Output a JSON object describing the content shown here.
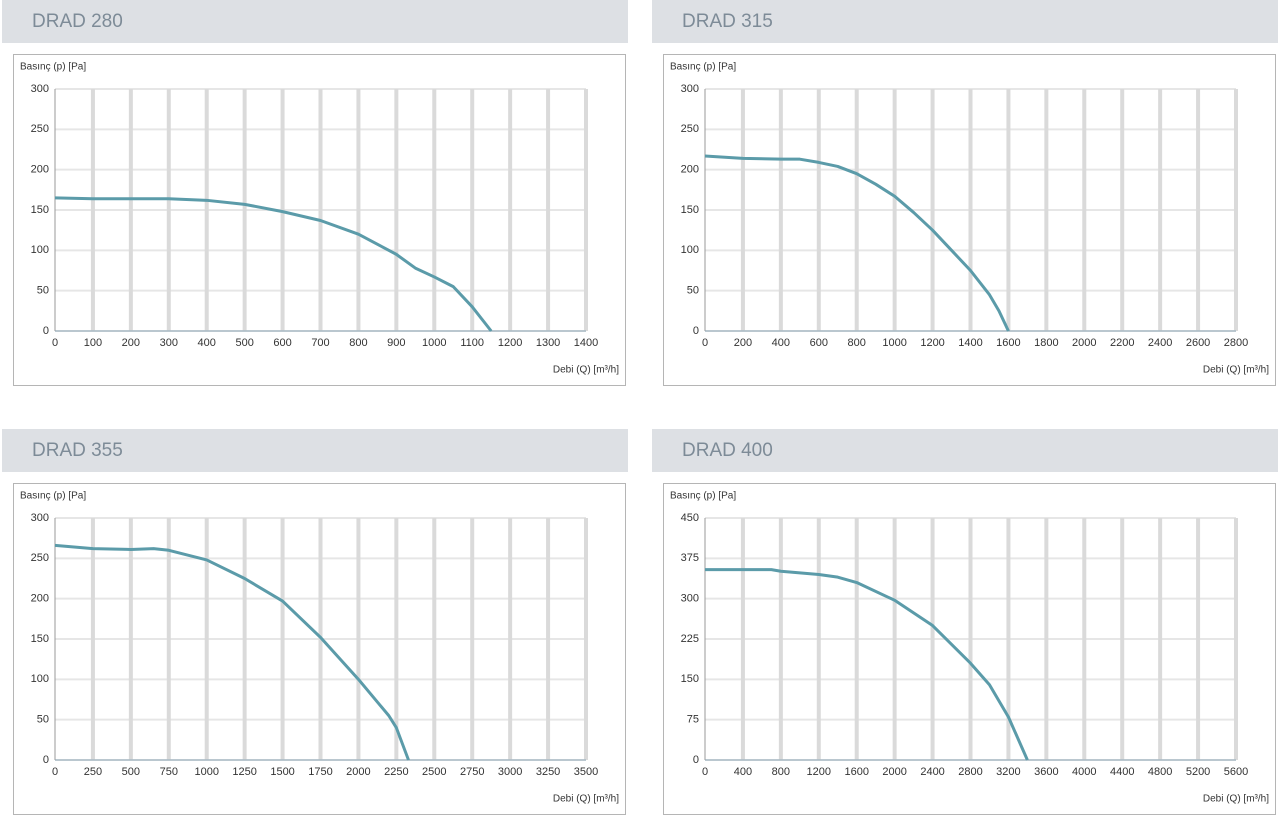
{
  "chart_data": [
    {
      "type": "line",
      "title": "DRAD 280",
      "y_label": "Basınç (p) [Pa]",
      "x_label": "Debi (Q) [m³/h]",
      "color": "#5b9ba9",
      "grid": true,
      "x": [
        0,
        100,
        200,
        300,
        400,
        500,
        600,
        700,
        800,
        900,
        950,
        1000,
        1050,
        1100,
        1150
      ],
      "values": [
        165,
        164,
        164,
        164,
        162,
        157,
        148,
        137,
        120,
        95,
        78,
        67,
        55,
        30,
        0
      ],
      "xlim": [
        0,
        1400
      ],
      "xticks": [
        0,
        100,
        200,
        300,
        400,
        500,
        600,
        700,
        800,
        900,
        1000,
        1100,
        1200,
        1300,
        1400
      ],
      "ylim": [
        0,
        300
      ],
      "yticks": [
        0,
        50,
        100,
        150,
        200,
        250,
        300
      ]
    },
    {
      "type": "line",
      "title": "DRAD 315",
      "y_label": "Basınç (p) [Pa]",
      "x_label": "Debi (Q) [m³/h]",
      "color": "#5b9ba9",
      "grid": true,
      "x": [
        0,
        200,
        400,
        500,
        600,
        700,
        800,
        900,
        1000,
        1100,
        1200,
        1300,
        1400,
        1500,
        1550,
        1600
      ],
      "values": [
        217,
        214,
        213,
        213,
        209,
        204,
        195,
        182,
        167,
        147,
        125,
        100,
        75,
        45,
        25,
        0
      ],
      "xlim": [
        0,
        2800
      ],
      "xticks": [
        0,
        200,
        400,
        600,
        800,
        1000,
        1200,
        1400,
        1600,
        1800,
        2000,
        2200,
        2400,
        2600,
        2800
      ],
      "ylim": [
        0,
        300
      ],
      "yticks": [
        0,
        50,
        100,
        150,
        200,
        250,
        300
      ]
    },
    {
      "type": "line",
      "title": "DRAD 355",
      "y_label": "Basınç (p) [Pa]",
      "x_label": "Debi (Q) [m³/h]",
      "color": "#5b9ba9",
      "grid": true,
      "x": [
        0,
        250,
        500,
        650,
        750,
        1000,
        1250,
        1500,
        1750,
        2000,
        2200,
        2250,
        2330
      ],
      "values": [
        266,
        262,
        261,
        262,
        260,
        248,
        225,
        197,
        152,
        100,
        55,
        40,
        0
      ],
      "xlim": [
        0,
        3500
      ],
      "xticks": [
        0,
        250,
        500,
        750,
        1000,
        1250,
        1500,
        1750,
        2000,
        2250,
        2500,
        2750,
        3000,
        3250,
        3500
      ],
      "ylim": [
        0,
        300
      ],
      "yticks": [
        0,
        50,
        100,
        150,
        200,
        250,
        300
      ]
    },
    {
      "type": "line",
      "title": "DRAD 400",
      "y_label": "Basınç (p) [Pa]",
      "x_label": "Debi (Q) [m³/h]",
      "color": "#5b9ba9",
      "grid": true,
      "x": [
        0,
        400,
        700,
        800,
        1200,
        1400,
        1600,
        2000,
        2400,
        2800,
        3000,
        3200,
        3400
      ],
      "values": [
        354,
        354,
        354,
        351,
        345,
        340,
        330,
        297,
        250,
        180,
        140,
        80,
        0
      ],
      "xlim": [
        0,
        5600
      ],
      "xticks": [
        0,
        400,
        800,
        1200,
        1600,
        2000,
        2400,
        2800,
        3200,
        3600,
        4000,
        4400,
        4800,
        5200,
        5600
      ],
      "ylim": [
        0,
        450
      ],
      "yticks": [
        0,
        75,
        150,
        225,
        300,
        375,
        450
      ]
    }
  ]
}
